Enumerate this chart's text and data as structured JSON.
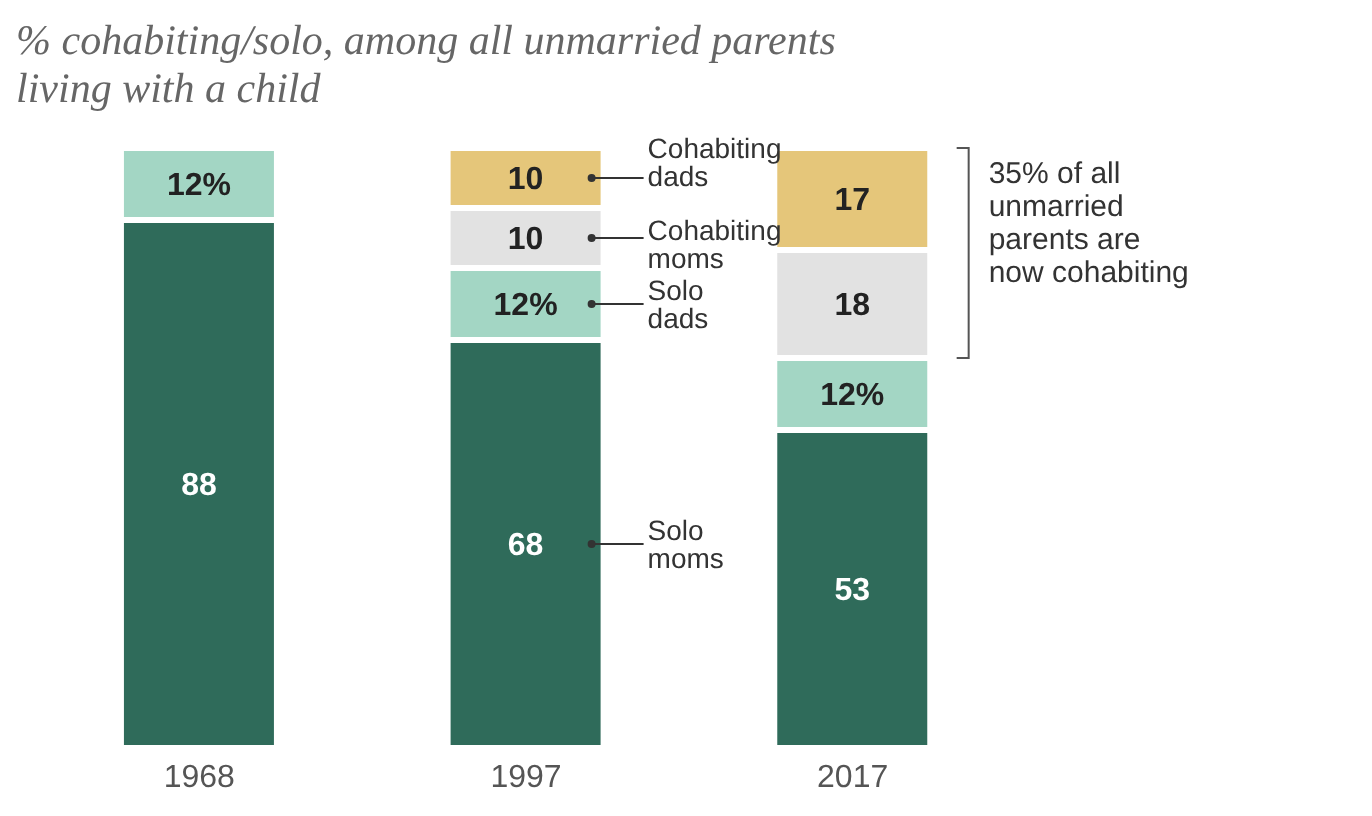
{
  "chart_data": {
    "type": "bar",
    "stacked": true,
    "title": "% cohabiting/solo, among all unmarried parents living with a child",
    "categories": [
      "1968",
      "1997",
      "2017"
    ],
    "series": [
      {
        "name": "Solo moms",
        "color": "#2f6b5a",
        "values": [
          88,
          68,
          53
        ],
        "value_labels": [
          "88",
          "68",
          "53"
        ]
      },
      {
        "name": "Solo dads",
        "color": "#a3d6c4",
        "values": [
          12,
          12,
          12
        ],
        "value_labels": [
          "12%",
          "12%",
          "12%"
        ]
      },
      {
        "name": "Cohabiting moms",
        "color": "#e2e2e2",
        "values": [
          null,
          10,
          18
        ],
        "value_labels": [
          null,
          "10",
          "18"
        ]
      },
      {
        "name": "Cohabiting dads",
        "color": "#e5c67a",
        "values": [
          null,
          10,
          17
        ],
        "value_labels": [
          null,
          "10",
          "17"
        ]
      }
    ],
    "annotations": [
      "35% of all unmarried parents are now cohabiting"
    ]
  }
}
